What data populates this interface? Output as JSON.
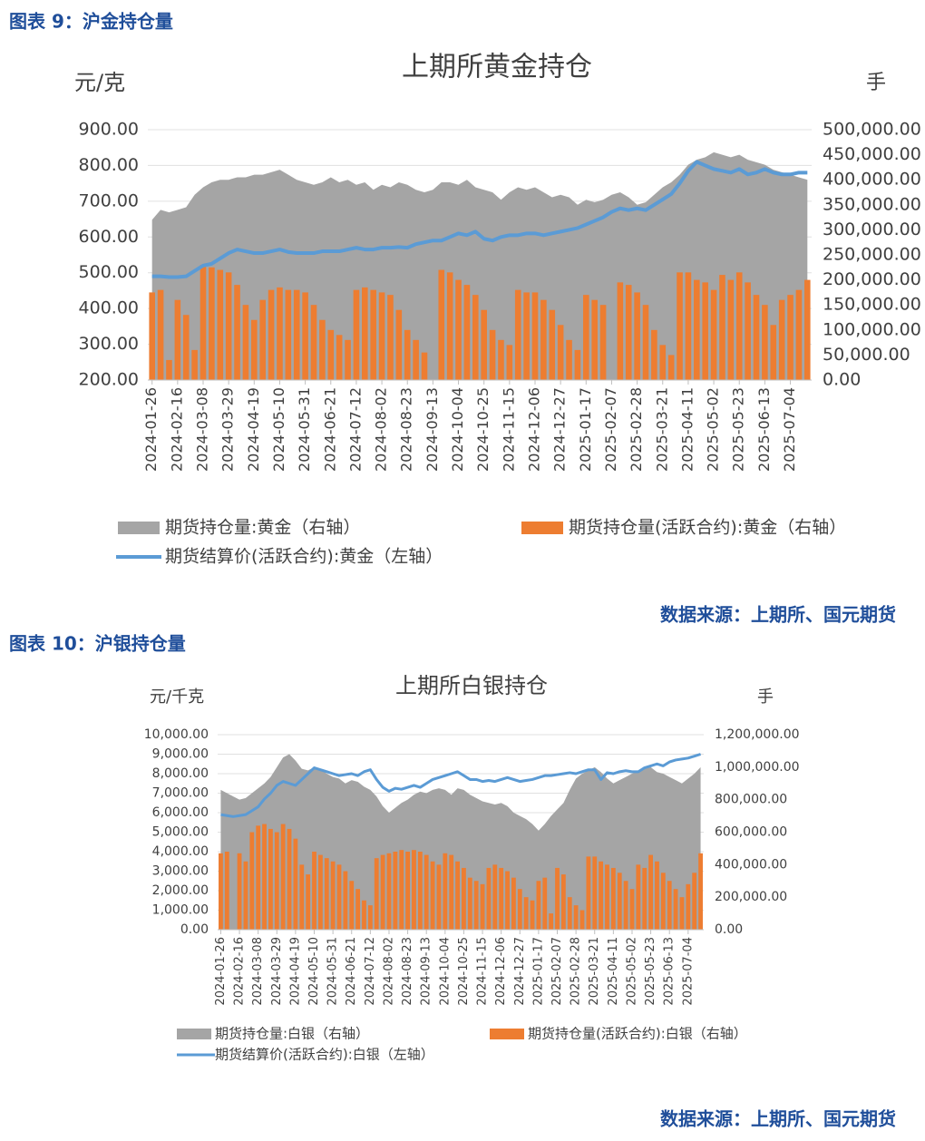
{
  "chart_data": [
    {
      "type": "combo",
      "caption": "图表 9：沪金持仓量",
      "title": "上期所黄金持仓",
      "y_label": "元/克",
      "y2_label": "手",
      "source": "数据来源：上期所、国元期货",
      "grid": true,
      "categories": [
        "2024-01-26",
        null,
        null,
        "2024-02-16",
        null,
        null,
        "2024-03-08",
        null,
        null,
        "2024-03-29",
        null,
        null,
        "2024-04-19",
        null,
        null,
        "2024-05-10",
        null,
        null,
        "2024-05-31",
        null,
        null,
        "2024-06-21",
        null,
        null,
        "2024-07-12",
        null,
        null,
        "2024-08-02",
        null,
        null,
        "2024-08-23",
        null,
        null,
        "2024-09-13",
        null,
        null,
        "2024-10-04",
        null,
        null,
        "2024-10-25",
        null,
        null,
        "2024-11-15",
        null,
        null,
        "2024-12-06",
        null,
        null,
        "2024-12-27",
        null,
        null,
        "2025-01-17",
        null,
        null,
        "2025-02-07",
        null,
        null,
        "2025-02-28",
        null,
        null,
        "2025-03-21",
        null,
        null,
        "2025-04-11",
        null,
        null,
        "2025-05-02",
        null,
        null,
        "2025-05-23",
        null,
        null,
        "2025-06-13",
        null,
        null,
        "2025-07-04",
        null,
        null
      ],
      "ylim": [
        200,
        900
      ],
      "yticks": [
        {
          "value": 200,
          "label": "200.00"
        },
        {
          "value": 300,
          "label": "300.00"
        },
        {
          "value": 400,
          "label": "400.00"
        },
        {
          "value": 500,
          "label": "500.00"
        },
        {
          "value": 600,
          "label": "600.00"
        },
        {
          "value": 700,
          "label": "700.00"
        },
        {
          "value": 800,
          "label": "800.00"
        },
        {
          "value": 900,
          "label": "900.00"
        }
      ],
      "y2lim": [
        0,
        500000
      ],
      "y2ticks": [
        {
          "value": 0,
          "label": "0.00"
        },
        {
          "value": 50000,
          "label": "50,000.00"
        },
        {
          "value": 100000,
          "label": "100,000.00"
        },
        {
          "value": 150000,
          "label": "150,000.00"
        },
        {
          "value": 200000,
          "label": "200,000.00"
        },
        {
          "value": 250000,
          "label": "250,000.00"
        },
        {
          "value": 300000,
          "label": "300,000.00"
        },
        {
          "value": 350000,
          "label": "350,000.00"
        },
        {
          "value": 400000,
          "label": "400,000.00"
        },
        {
          "value": 450000,
          "label": "450,000.00"
        },
        {
          "value": 500000,
          "label": "500,000.00"
        }
      ],
      "series": [
        {
          "name": "期货持仓量:黄金（右轴）",
          "kind": "area",
          "axis": "y2",
          "color": "#a5a5a5",
          "values": [
            320000,
            340000,
            335000,
            340000,
            345000,
            370000,
            385000,
            395000,
            400000,
            400000,
            405000,
            405000,
            410000,
            410000,
            415000,
            420000,
            410000,
            400000,
            395000,
            390000,
            395000,
            405000,
            395000,
            400000,
            390000,
            395000,
            380000,
            390000,
            385000,
            395000,
            390000,
            380000,
            375000,
            380000,
            395000,
            395000,
            390000,
            400000,
            385000,
            380000,
            375000,
            360000,
            375000,
            385000,
            380000,
            385000,
            375000,
            365000,
            370000,
            365000,
            350000,
            360000,
            355000,
            360000,
            370000,
            375000,
            365000,
            350000,
            355000,
            370000,
            385000,
            395000,
            410000,
            430000,
            440000,
            445000,
            455000,
            450000,
            445000,
            450000,
            440000,
            435000,
            430000,
            420000,
            415000,
            410000,
            405000,
            400000
          ]
        },
        {
          "name": "期货持仓量(活跃合约):黄金（右轴）",
          "kind": "bar",
          "axis": "y2",
          "color": "#ed7d31",
          "values": [
            175000,
            180000,
            40000,
            160000,
            130000,
            60000,
            230000,
            225000,
            220000,
            215000,
            190000,
            150000,
            120000,
            160000,
            180000,
            185000,
            180000,
            180000,
            175000,
            150000,
            120000,
            100000,
            90000,
            80000,
            180000,
            185000,
            180000,
            175000,
            170000,
            140000,
            100000,
            80000,
            55000,
            0,
            220000,
            215000,
            200000,
            190000,
            170000,
            140000,
            100000,
            80000,
            70000,
            180000,
            175000,
            175000,
            160000,
            140000,
            110000,
            80000,
            60000,
            170000,
            160000,
            150000,
            0,
            195000,
            190000,
            175000,
            150000,
            100000,
            70000,
            50000,
            215000,
            215000,
            200000,
            195000,
            180000,
            210000,
            200000,
            215000,
            195000,
            170000,
            150000,
            110000,
            160000,
            170000,
            180000,
            200000
          ]
        },
        {
          "name": "期货结算价(活跃合约):黄金（左轴）",
          "kind": "line",
          "axis": "y",
          "color": "#5b9bd5",
          "values": [
            490,
            490,
            488,
            488,
            490,
            505,
            520,
            525,
            540,
            555,
            565,
            560,
            555,
            555,
            560,
            565,
            558,
            555,
            555,
            555,
            560,
            560,
            560,
            565,
            570,
            565,
            565,
            570,
            570,
            572,
            570,
            580,
            585,
            590,
            590,
            600,
            610,
            605,
            615,
            595,
            590,
            600,
            605,
            605,
            610,
            610,
            605,
            610,
            615,
            620,
            625,
            635,
            645,
            655,
            670,
            680,
            675,
            680,
            675,
            690,
            705,
            720,
            750,
            785,
            810,
            800,
            790,
            785,
            780,
            790,
            775,
            780,
            790,
            780,
            775,
            775,
            780,
            780
          ]
        }
      ]
    },
    {
      "type": "combo",
      "caption": "图表 10：沪银持仓量",
      "title": "上期所白银持仓",
      "y_label": "元/千克",
      "y2_label": "手",
      "source": "数据来源：上期所、国元期货",
      "grid": true,
      "categories": [
        "2024-01-26",
        null,
        null,
        "2024-02-16",
        null,
        null,
        "2024-03-08",
        null,
        null,
        "2024-03-29",
        null,
        null,
        "2024-04-19",
        null,
        null,
        "2024-05-10",
        null,
        null,
        "2024-05-31",
        null,
        null,
        "2024-06-21",
        null,
        null,
        "2024-07-12",
        null,
        null,
        "2024-08-02",
        null,
        null,
        "2024-08-23",
        null,
        null,
        "2024-09-13",
        null,
        null,
        "2024-10-04",
        null,
        null,
        "2024-10-25",
        null,
        null,
        "2024-11-15",
        null,
        null,
        "2024-12-06",
        null,
        null,
        "2024-12-27",
        null,
        null,
        "2025-01-17",
        null,
        null,
        "2025-02-07",
        null,
        null,
        "2025-02-28",
        null,
        null,
        "2025-03-21",
        null,
        null,
        "2025-04-11",
        null,
        null,
        "2025-05-02",
        null,
        null,
        "2025-05-23",
        null,
        null,
        "2025-06-13",
        null,
        null,
        "2025-07-04",
        null,
        null
      ],
      "ylim": [
        0,
        10000
      ],
      "yticks": [
        {
          "value": 0,
          "label": "0.00"
        },
        {
          "value": 1000,
          "label": "1,000.00"
        },
        {
          "value": 2000,
          "label": "2,000.00"
        },
        {
          "value": 3000,
          "label": "3,000.00"
        },
        {
          "value": 4000,
          "label": "4,000.00"
        },
        {
          "value": 5000,
          "label": "5,000.00"
        },
        {
          "value": 6000,
          "label": "6,000.00"
        },
        {
          "value": 7000,
          "label": "7,000.00"
        },
        {
          "value": 8000,
          "label": "8,000.00"
        },
        {
          "value": 9000,
          "label": "9,000.00"
        },
        {
          "value": 10000,
          "label": "10,000.00"
        }
      ],
      "y2lim": [
        0,
        1200000
      ],
      "y2ticks": [
        {
          "value": 0,
          "label": "0.00"
        },
        {
          "value": 200000,
          "label": "200,000.00"
        },
        {
          "value": 400000,
          "label": "400,000.00"
        },
        {
          "value": 600000,
          "label": "600,000.00"
        },
        {
          "value": 800000,
          "label": "800,000.00"
        },
        {
          "value": 1000000,
          "label": "1,000,000.00"
        },
        {
          "value": 1200000,
          "label": "1,200,000.00"
        }
      ],
      "series": [
        {
          "name": "期货持仓量:白银（右轴）",
          "kind": "area",
          "axis": "y2",
          "color": "#a5a5a5",
          "values": [
            860000,
            840000,
            820000,
            800000,
            810000,
            840000,
            870000,
            900000,
            940000,
            1000000,
            1060000,
            1080000,
            1040000,
            990000,
            980000,
            1000000,
            990000,
            960000,
            940000,
            930000,
            900000,
            920000,
            910000,
            880000,
            860000,
            820000,
            760000,
            720000,
            750000,
            780000,
            800000,
            830000,
            850000,
            840000,
            860000,
            870000,
            860000,
            830000,
            870000,
            860000,
            830000,
            810000,
            790000,
            780000,
            770000,
            780000,
            760000,
            720000,
            700000,
            680000,
            650000,
            610000,
            650000,
            700000,
            740000,
            780000,
            860000,
            930000,
            960000,
            980000,
            1000000,
            970000,
            930000,
            900000,
            920000,
            940000,
            960000,
            980000,
            990000,
            1000000,
            970000,
            960000,
            940000,
            920000,
            900000,
            930000,
            960000,
            1000000
          ]
        },
        {
          "name": "期货持仓量(活跃合约):白银（右轴）",
          "kind": "bar",
          "axis": "y2",
          "color": "#ed7d31",
          "values": [
            470000,
            480000,
            0,
            470000,
            420000,
            600000,
            640000,
            650000,
            620000,
            600000,
            650000,
            620000,
            560000,
            400000,
            340000,
            480000,
            460000,
            440000,
            420000,
            400000,
            360000,
            300000,
            250000,
            180000,
            150000,
            440000,
            460000,
            470000,
            480000,
            490000,
            480000,
            490000,
            480000,
            460000,
            420000,
            400000,
            470000,
            460000,
            420000,
            380000,
            320000,
            300000,
            280000,
            380000,
            400000,
            380000,
            360000,
            320000,
            250000,
            200000,
            180000,
            300000,
            320000,
            100000,
            380000,
            340000,
            200000,
            150000,
            120000,
            450000,
            450000,
            420000,
            400000,
            380000,
            350000,
            300000,
            250000,
            400000,
            380000,
            460000,
            420000,
            350000,
            300000,
            250000,
            200000,
            280000,
            350000,
            470000
          ]
        },
        {
          "name": "期货结算价(活跃合约):白银（左轴）",
          "kind": "line",
          "axis": "y",
          "color": "#5b9bd5",
          "values": [
            5900,
            5850,
            5800,
            5850,
            5900,
            6100,
            6300,
            6700,
            7000,
            7400,
            7600,
            7500,
            7400,
            7700,
            8000,
            8300,
            8200,
            8100,
            8000,
            7900,
            7950,
            8000,
            7900,
            8100,
            8200,
            7700,
            7300,
            7100,
            7250,
            7200,
            7300,
            7400,
            7300,
            7500,
            7700,
            7800,
            7900,
            8000,
            8100,
            7900,
            7700,
            7700,
            7600,
            7650,
            7600,
            7700,
            7800,
            7700,
            7600,
            7650,
            7700,
            7800,
            7900,
            7900,
            7950,
            8000,
            8050,
            8000,
            8100,
            8200,
            8200,
            7700,
            8050,
            8000,
            8100,
            8150,
            8100,
            8100,
            8300,
            8400,
            8500,
            8400,
            8600,
            8700,
            8750,
            8800,
            8900,
            9000
          ]
        }
      ]
    }
  ]
}
